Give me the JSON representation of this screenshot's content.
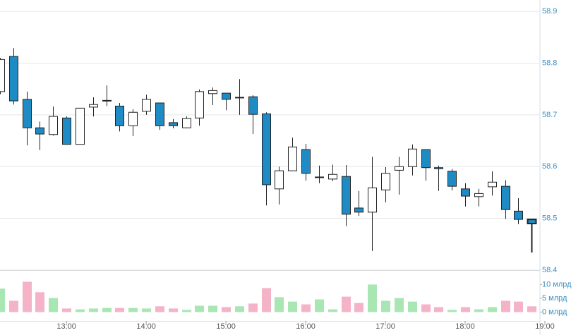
{
  "chart_data": {
    "type": "candlestick",
    "x": [
      730,
      740,
      750,
      760,
      770,
      780,
      790,
      800,
      810,
      820,
      830,
      840,
      850,
      860,
      870,
      880,
      890,
      900,
      910,
      920,
      930,
      940,
      950,
      960,
      970,
      980,
      990,
      1000,
      1010,
      1020,
      1030,
      1040,
      1050,
      1060,
      1070,
      1080,
      1090,
      1100,
      1110,
      1120,
      1130
    ],
    "open": [
      58.745,
      58.813,
      58.73,
      58.675,
      58.662,
      58.694,
      58.643,
      58.715,
      58.728,
      58.717,
      58.679,
      58.707,
      58.723,
      58.685,
      58.675,
      58.694,
      58.741,
      58.742,
      58.733,
      58.735,
      58.702,
      58.557,
      58.592,
      58.633,
      58.579,
      58.576,
      58.581,
      58.52,
      58.512,
      58.555,
      58.593,
      58.6,
      58.633,
      58.598,
      58.591,
      58.557,
      58.542,
      58.561,
      58.562,
      58.514,
      58.498
    ],
    "high": [
      58.81,
      58.829,
      58.745,
      58.687,
      58.716,
      58.697,
      58.713,
      58.734,
      58.757,
      58.723,
      58.711,
      58.739,
      58.723,
      58.692,
      58.697,
      58.749,
      58.753,
      58.742,
      58.769,
      58.738,
      58.705,
      58.6,
      58.656,
      58.644,
      58.602,
      58.604,
      58.603,
      58.553,
      58.619,
      58.599,
      58.619,
      58.643,
      58.633,
      58.602,
      58.595,
      58.568,
      58.557,
      58.591,
      58.574,
      58.539,
      58.498
    ],
    "low": [
      58.74,
      58.72,
      58.641,
      58.632,
      58.66,
      58.643,
      58.643,
      58.697,
      58.717,
      58.668,
      58.659,
      58.7,
      58.671,
      58.674,
      58.674,
      58.679,
      58.719,
      58.709,
      58.7,
      58.663,
      58.525,
      58.527,
      58.592,
      58.573,
      58.568,
      58.572,
      58.485,
      58.505,
      58.437,
      58.531,
      58.546,
      58.583,
      58.573,
      58.553,
      58.554,
      58.523,
      58.523,
      58.544,
      58.499,
      58.489,
      58.434
    ],
    "close": [
      58.807,
      58.727,
      58.675,
      58.663,
      58.697,
      58.643,
      58.713,
      58.72,
      58.727,
      58.679,
      58.705,
      58.73,
      58.679,
      58.679,
      58.693,
      58.745,
      58.747,
      58.73,
      58.734,
      58.701,
      58.565,
      58.592,
      58.638,
      58.587,
      58.58,
      58.585,
      58.508,
      58.512,
      58.559,
      58.587,
      58.6,
      58.634,
      58.598,
      58.596,
      58.562,
      58.543,
      58.548,
      58.57,
      58.517,
      58.498,
      58.49
    ],
    "up_color": "#ffffff",
    "down_color": "#1f8bc4",
    "ylim": [
      58.4,
      58.922
    ],
    "yticks": [
      58.4,
      58.5,
      58.6,
      58.7,
      58.8,
      58.9
    ],
    "xlim": [
      730,
      1140
    ],
    "xticks": [
      {
        "value": 780,
        "label": "13:00"
      },
      {
        "value": 840,
        "label": "14:00"
      },
      {
        "value": 900,
        "label": "15:00"
      },
      {
        "value": 960,
        "label": "16:00"
      },
      {
        "value": 1020,
        "label": "17:00"
      },
      {
        "value": 1080,
        "label": "18:00"
      },
      {
        "value": 1140,
        "label": "19:00"
      }
    ],
    "grid": true,
    "volume": {
      "values": [
        8.5,
        4.1,
        11,
        7.2,
        5.1,
        1.3,
        1.0,
        1.3,
        1.5,
        1.5,
        1.5,
        1.3,
        2.1,
        1.3,
        0.8,
        2.3,
        2.3,
        1.8,
        2.1,
        3.1,
        8.7,
        5.4,
        3.8,
        2.8,
        4.6,
        1.0,
        5.6,
        3.3,
        10,
        4.1,
        5.1,
        3.8,
        2.8,
        1.8,
        0.8,
        1.8,
        1.0,
        1.8,
        4.1,
        3.8,
        2.1
      ],
      "colors": [
        "#a8e6b4",
        "#f5b3c8",
        "#f5b3c8",
        "#f5b3c8",
        "#a8e6b4",
        "#f5b3c8",
        "#a8e6b4",
        "#a8e6b4",
        "#a8e6b4",
        "#f5b3c8",
        "#a8e6b4",
        "#a8e6b4",
        "#f5b3c8",
        "#f5b3c8",
        "#a8e6b4",
        "#a8e6b4",
        "#a8e6b4",
        "#f5b3c8",
        "#a8e6b4",
        "#f5b3c8",
        "#f5b3c8",
        "#a8e6b4",
        "#a8e6b4",
        "#f5b3c8",
        "#a8e6b4",
        "#a8e6b4",
        "#f5b3c8",
        "#f5b3c8",
        "#a8e6b4",
        "#a8e6b4",
        "#a8e6b4",
        "#a8e6b4",
        "#f5b3c8",
        "#f5b3c8",
        "#a8e6b4",
        "#f5b3c8",
        "#a8e6b4",
        "#a8e6b4",
        "#f5b3c8",
        "#f5b3c8",
        "#f5b3c8"
      ],
      "ylim": [
        0,
        14.7
      ],
      "yticks": [
        {
          "value": 0,
          "label": "0 млрд"
        },
        {
          "value": 5,
          "label": "5 млрд"
        },
        {
          "value": 10,
          "label": "10 млрд"
        }
      ]
    }
  }
}
